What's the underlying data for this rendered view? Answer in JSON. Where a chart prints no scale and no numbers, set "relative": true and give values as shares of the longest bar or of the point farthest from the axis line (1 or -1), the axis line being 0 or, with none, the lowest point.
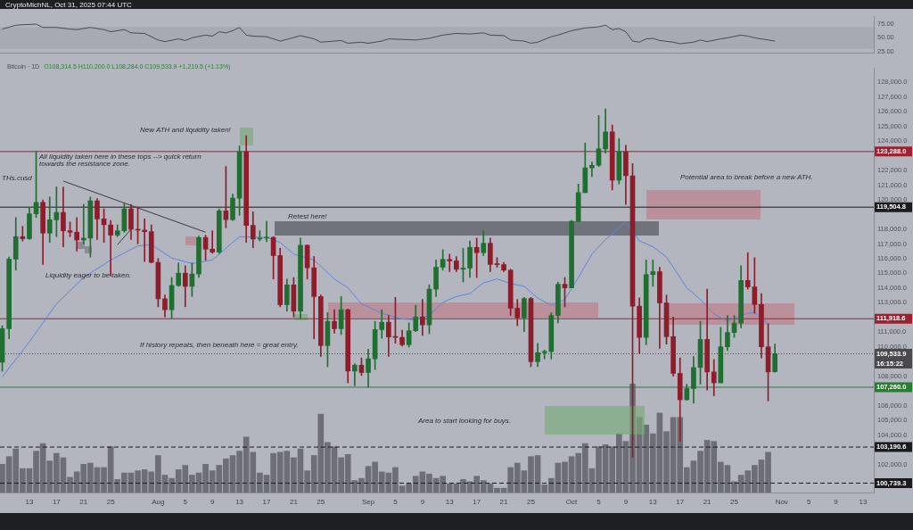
{
  "chart_data": [
    {
      "type": "line",
      "annotations": [
        "CryptoMichNL, Oct 31, 2025 07:44 UTC"
      ],
      "series": [
        {
          "color": "#4a4a50",
          "x": [
            "2025-07-09",
            "2025-07-11",
            "2025-07-12",
            "2025-07-14",
            "2025-07-15",
            "2025-07-17",
            "2025-07-19",
            "2025-07-20",
            "2025-07-22",
            "2025-07-24",
            "2025-07-25",
            "2025-07-27",
            "2025-07-28",
            "2025-07-30",
            "2025-08-01",
            "2025-08-02",
            "2025-08-04",
            "2025-08-05",
            "2025-08-06",
            "2025-08-08",
            "2025-08-09",
            "2025-08-10",
            "2025-08-11",
            "2025-08-12",
            "2025-08-13",
            "2025-08-14",
            "2025-08-15",
            "2025-08-17",
            "2025-08-19",
            "2025-08-20",
            "2025-08-22",
            "2025-08-24",
            "2025-08-25",
            "2025-08-28",
            "2025-08-29",
            "2025-08-31",
            "2025-09-01",
            "2025-09-03",
            "2025-09-04",
            "2025-09-06",
            "2025-09-08",
            "2025-09-10",
            "2025-09-12",
            "2025-09-14",
            "2025-09-16",
            "2025-09-18",
            "2025-09-19",
            "2025-09-21",
            "2025-09-22",
            "2025-09-24",
            "2025-09-25",
            "2025-09-26",
            "2025-09-28",
            "2025-09-29",
            "2025-10-01",
            "2025-10-03",
            "2025-10-05",
            "2025-10-06",
            "2025-10-07",
            "2025-10-08",
            "2025-10-09",
            "2025-10-10",
            "2025-10-11",
            "2025-10-12",
            "2025-10-13",
            "2025-10-14",
            "2025-10-16",
            "2025-10-17",
            "2025-10-19",
            "2025-10-20",
            "2025-10-21",
            "2025-10-23",
            "2025-10-24",
            "2025-10-26",
            "2025-10-27",
            "2025-10-28",
            "2025-10-30",
            "2025-10-31"
          ],
          "values": [
            66,
            73,
            74,
            75,
            69,
            69,
            66,
            65,
            69,
            65,
            61,
            65,
            59,
            58,
            46,
            43,
            48,
            45,
            50,
            55,
            53,
            61,
            59,
            63,
            69,
            55,
            53,
            52,
            44,
            47,
            54,
            48,
            42,
            45,
            40,
            42,
            40,
            44,
            48,
            47,
            46,
            49,
            55,
            58,
            57,
            59,
            55,
            54,
            46,
            44,
            40,
            42,
            52,
            55,
            63,
            68,
            70,
            73,
            65,
            67,
            61,
            44,
            42,
            48,
            49,
            45,
            42,
            39,
            42,
            46,
            43,
            48,
            50,
            55,
            53,
            50,
            46,
            44
          ]
        }
      ],
      "xlim": [
        "2025-07-08T16:00",
        "2025-11-14T14:00"
      ],
      "ylim": [
        22,
        89
      ],
      "yticks": [
        {
          "value": 75,
          "label": "75.00"
        },
        {
          "value": 50,
          "label": "50.00"
        },
        {
          "value": 25,
          "label": "25.00"
        }
      ],
      "bands": [
        {
          "axis": "y",
          "from": 30,
          "to": 70,
          "color": "#a7aab3"
        }
      ],
      "tick_labels": "y"
    },
    {
      "type": "candlestick",
      "title": "Bitcoin · 1D",
      "subtitle": "O108,314.5 H110,200.0 L108,284.0 C109,533.9 +1,219.5 (+1.13%)",
      "x": [
        "2025-07-09",
        "2025-07-10",
        "2025-07-11",
        "2025-07-12",
        "2025-07-13",
        "2025-07-14",
        "2025-07-15",
        "2025-07-16",
        "2025-07-17",
        "2025-07-18",
        "2025-07-19",
        "2025-07-20",
        "2025-07-21",
        "2025-07-22",
        "2025-07-23",
        "2025-07-24",
        "2025-07-25",
        "2025-07-26",
        "2025-07-27",
        "2025-07-28",
        "2025-07-29",
        "2025-07-30",
        "2025-07-31",
        "2025-08-01",
        "2025-08-02",
        "2025-08-03",
        "2025-08-04",
        "2025-08-05",
        "2025-08-06",
        "2025-08-07",
        "2025-08-08",
        "2025-08-09",
        "2025-08-10",
        "2025-08-11",
        "2025-08-12",
        "2025-08-13",
        "2025-08-14",
        "2025-08-15",
        "2025-08-16",
        "2025-08-17",
        "2025-08-18",
        "2025-08-19",
        "2025-08-20",
        "2025-08-21",
        "2025-08-22",
        "2025-08-23",
        "2025-08-24",
        "2025-08-25",
        "2025-08-26",
        "2025-08-27",
        "2025-08-28",
        "2025-08-29",
        "2025-08-30",
        "2025-08-31",
        "2025-09-01",
        "2025-09-02",
        "2025-09-03",
        "2025-09-04",
        "2025-09-05",
        "2025-09-06",
        "2025-09-07",
        "2025-09-08",
        "2025-09-09",
        "2025-09-10",
        "2025-09-11",
        "2025-09-12",
        "2025-09-13",
        "2025-09-14",
        "2025-09-15",
        "2025-09-16",
        "2025-09-17",
        "2025-09-18",
        "2025-09-19",
        "2025-09-20",
        "2025-09-21",
        "2025-09-22",
        "2025-09-23",
        "2025-09-24",
        "2025-09-25",
        "2025-09-26",
        "2025-09-27",
        "2025-09-28",
        "2025-09-29",
        "2025-09-30",
        "2025-10-01",
        "2025-10-02",
        "2025-10-03",
        "2025-10-04",
        "2025-10-05",
        "2025-10-06",
        "2025-10-07",
        "2025-10-08",
        "2025-10-09",
        "2025-10-10",
        "2025-10-11",
        "2025-10-12",
        "2025-10-13",
        "2025-10-14",
        "2025-10-15",
        "2025-10-16",
        "2025-10-17",
        "2025-10-18",
        "2025-10-19",
        "2025-10-20",
        "2025-10-21",
        "2025-10-22",
        "2025-10-23",
        "2025-10-24",
        "2025-10-25",
        "2025-10-26",
        "2025-10-27",
        "2025-10-28",
        "2025-10-29",
        "2025-10-30",
        "2025-10-31"
      ],
      "ohlc": [
        [
          108960,
          111440,
          108350,
          111240
        ],
        [
          111240,
          116110,
          110550,
          115970
        ],
        [
          115970,
          118800,
          115220,
          117500
        ],
        [
          117500,
          118200,
          117200,
          117360
        ],
        [
          117360,
          119490,
          117300,
          119050
        ],
        [
          119050,
          123290,
          118800,
          119830
        ],
        [
          119830,
          119990,
          115610,
          117740
        ],
        [
          117740,
          120190,
          117110,
          118640
        ],
        [
          118640,
          120880,
          117500,
          119150
        ],
        [
          119150,
          120880,
          116810,
          117900
        ],
        [
          117900,
          118500,
          117500,
          117800
        ],
        [
          117800,
          118800,
          116510,
          117270
        ],
        [
          117270,
          119690,
          117010,
          117400
        ],
        [
          117400,
          120190,
          116110,
          119930
        ],
        [
          119930,
          120090,
          117300,
          118700
        ],
        [
          118700,
          119390,
          117110,
          118300
        ],
        [
          118300,
          118600,
          114820,
          117600
        ],
        [
          117600,
          118300,
          117500,
          117900
        ],
        [
          117900,
          119730,
          117800,
          119390
        ],
        [
          119390,
          119690,
          117300,
          118000
        ],
        [
          118000,
          119490,
          117010,
          117940
        ],
        [
          117940,
          118700,
          115810,
          117840
        ],
        [
          117840,
          118300,
          115710,
          115750
        ],
        [
          115750,
          116010,
          112730,
          113270
        ],
        [
          113270,
          113530,
          112040,
          112530
        ],
        [
          112530,
          114720,
          111940,
          114180
        ],
        [
          114180,
          115710,
          114120,
          115020
        ],
        [
          115020,
          115520,
          112730,
          114120
        ],
        [
          114120,
          115710,
          113430,
          114960
        ],
        [
          114960,
          117540,
          114720,
          117440
        ],
        [
          117440,
          117600,
          115910,
          116650
        ],
        [
          116650,
          117900,
          116370,
          116450
        ],
        [
          116450,
          119390,
          116350,
          119250
        ],
        [
          119250,
          122270,
          118100,
          118660
        ],
        [
          118660,
          120390,
          118600,
          120110
        ],
        [
          120110,
          123670,
          118940,
          123270
        ],
        [
          123270,
          124360,
          117110,
          118260
        ],
        [
          118260,
          119190,
          116750,
          117340
        ],
        [
          117340,
          117900,
          117210,
          117400
        ],
        [
          117400,
          118540,
          117150,
          117450
        ],
        [
          117450,
          117500,
          114620,
          116210
        ],
        [
          116210,
          116710,
          112730,
          112870
        ],
        [
          112870,
          114620,
          112430,
          114220
        ],
        [
          114220,
          114720,
          112040,
          112430
        ],
        [
          112430,
          117400,
          111940,
          116910
        ],
        [
          116910,
          116950,
          114620,
          115380
        ],
        [
          115380,
          116150,
          110550,
          113430
        ],
        [
          113430,
          113530,
          109350,
          110090
        ],
        [
          110090,
          112330,
          108660,
          111740
        ],
        [
          111740,
          112530,
          110940,
          111240
        ],
        [
          111240,
          113430,
          110840,
          112530
        ],
        [
          112530,
          112570,
          107560,
          108360
        ],
        [
          108360,
          108860,
          107360,
          108760
        ],
        [
          108760,
          109250,
          108060,
          108260
        ],
        [
          108260,
          109850,
          107260,
          109190
        ],
        [
          109190,
          111740,
          108460,
          111180
        ],
        [
          111180,
          112530,
          110590,
          111680
        ],
        [
          111680,
          112140,
          109350,
          110680
        ],
        [
          110680,
          113370,
          110250,
          110650
        ],
        [
          110650,
          111140,
          110050,
          110150
        ],
        [
          110150,
          111640,
          109990,
          111100
        ],
        [
          111100,
          112830,
          111040,
          112040
        ],
        [
          112040,
          113230,
          110780,
          111500
        ],
        [
          111500,
          114220,
          110900,
          113930
        ],
        [
          113930,
          115910,
          113430,
          115420
        ],
        [
          115420,
          116610,
          115220,
          115950
        ],
        [
          115950,
          116310,
          115120,
          115850
        ],
        [
          115850,
          116150,
          115120,
          115280
        ],
        [
          115280,
          116710,
          114420,
          115360
        ],
        [
          115360,
          117210,
          114720,
          116770
        ],
        [
          116770,
          117400,
          114720,
          116410
        ],
        [
          116410,
          117900,
          116210,
          117050
        ],
        [
          117050,
          117400,
          115120,
          115610
        ],
        [
          115610,
          116070,
          115420,
          115600
        ],
        [
          115600,
          115750,
          115120,
          115220
        ],
        [
          115220,
          115280,
          112140,
          112630
        ],
        [
          112630,
          113230,
          111440,
          111980
        ],
        [
          111980,
          113370,
          111040,
          113290
        ],
        [
          113290,
          113370,
          108660,
          109000
        ],
        [
          109000,
          110250,
          108660,
          109610
        ],
        [
          109610,
          109790,
          109190,
          109690
        ],
        [
          109690,
          112330,
          109190,
          112140
        ],
        [
          112140,
          114420,
          111640,
          114260
        ],
        [
          114260,
          114720,
          112730,
          114020
        ],
        [
          114020,
          118600,
          114020,
          118540
        ],
        [
          118540,
          121080,
          118540,
          120490
        ],
        [
          120490,
          123870,
          120490,
          122180
        ],
        [
          122180,
          122570,
          121580,
          122350
        ],
        [
          122350,
          125750,
          122270,
          123470
        ],
        [
          123470,
          126190,
          123170,
          124620
        ],
        [
          124620,
          125100,
          120680,
          121340
        ],
        [
          121340,
          124160,
          121080,
          123270
        ],
        [
          123270,
          123710,
          119690,
          121640
        ],
        [
          121640,
          122470,
          102490,
          112770
        ],
        [
          112770,
          113330,
          109550,
          110650
        ],
        [
          110650,
          115910,
          110150,
          114920
        ],
        [
          114920,
          115910,
          114120,
          115120
        ],
        [
          115120,
          115420,
          109910,
          112990
        ],
        [
          112990,
          113530,
          110190,
          110700
        ],
        [
          110700,
          112040,
          108000,
          108200
        ],
        [
          108200,
          109250,
          103590,
          106410
        ],
        [
          106410,
          107460,
          106370,
          107170
        ],
        [
          107170,
          109350,
          106170,
          108600
        ],
        [
          108600,
          111740,
          107460,
          110510
        ],
        [
          110510,
          113930,
          107070,
          108300
        ],
        [
          108300,
          109150,
          106670,
          107560
        ],
        [
          107560,
          111340,
          107560,
          110010
        ],
        [
          110010,
          112140,
          109750,
          110980
        ],
        [
          110980,
          112140,
          110650,
          111620
        ],
        [
          111620,
          115520,
          111300,
          114520
        ],
        [
          114520,
          116410,
          113930,
          114080
        ],
        [
          114080,
          116070,
          112290,
          112890
        ],
        [
          112890,
          113630,
          109250,
          110010
        ],
        [
          110010,
          111580,
          106330,
          108300
        ],
        [
          108314.5,
          110200,
          108284,
          109533.9
        ]
      ],
      "colors": [
        "#1f6f30",
        "#1f6f30",
        "#1f6f30",
        "#8e1c2b",
        "#1f6f30",
        "#1f6f30",
        "#8e1c2b",
        "#1f6f30",
        "#1f6f30",
        "#8e1c2b",
        "#8e1c2b",
        "#8e1c2b",
        "#1f6f30",
        "#1f6f30",
        "#8e1c2b",
        "#8e1c2b",
        "#8e1c2b",
        "#1f6f30",
        "#1f6f30",
        "#8e1c2b",
        "#8e1c2b",
        "#8e1c2b",
        "#8e1c2b",
        "#8e1c2b",
        "#8e1c2b",
        "#1f6f30",
        "#1f6f30",
        "#8e1c2b",
        "#1f6f30",
        "#1f6f30",
        "#8e1c2b",
        "#8e1c2b",
        "#1f6f30",
        "#8e1c2b",
        "#1f6f30",
        "#1f6f30",
        "#8e1c2b",
        "#8e1c2b",
        "#1f6f30",
        "#1f6f30",
        "#8e1c2b",
        "#8e1c2b",
        "#1f6f30",
        "#8e1c2b",
        "#1f6f30",
        "#8e1c2b",
        "#8e1c2b",
        "#8e1c2b",
        "#1f6f30",
        "#8e1c2b",
        "#1f6f30",
        "#8e1c2b",
        "#1f6f30",
        "#8e1c2b",
        "#1f6f30",
        "#1f6f30",
        "#1f6f30",
        "#8e1c2b",
        "#8e1c2b",
        "#8e1c2b",
        "#1f6f30",
        "#1f6f30",
        "#8e1c2b",
        "#1f6f30",
        "#1f6f30",
        "#1f6f30",
        "#8e1c2b",
        "#8e1c2b",
        "#1f6f30",
        "#1f6f30",
        "#8e1c2b",
        "#1f6f30",
        "#8e1c2b",
        "#8e1c2b",
        "#8e1c2b",
        "#8e1c2b",
        "#8e1c2b",
        "#1f6f30",
        "#8e1c2b",
        "#1f6f30",
        "#1f6f30",
        "#1f6f30",
        "#1f6f30",
        "#8e1c2b",
        "#1f6f30",
        "#1f6f30",
        "#1f6f30",
        "#1f6f30",
        "#1f6f30",
        "#1f6f30",
        "#8e1c2b",
        "#1f6f30",
        "#8e1c2b",
        "#8e1c2b",
        "#8e1c2b",
        "#1f6f30",
        "#1f6f30",
        "#8e1c2b",
        "#8e1c2b",
        "#8e1c2b",
        "#8e1c2b",
        "#1f6f30",
        "#1f6f30",
        "#1f6f30",
        "#8e1c2b",
        "#8e1c2b",
        "#1f6f30",
        "#1f6f30",
        "#1f6f30",
        "#1f6f30",
        "#8e1c2b",
        "#8e1c2b",
        "#8e1c2b",
        "#8e1c2b",
        "#1f6f30"
      ],
      "series": [
        {
          "type": "line",
          "color": "#5b86e0",
          "x": [
            "2025-07-09",
            "2025-07-13",
            "2025-07-17",
            "2025-07-21",
            "2025-07-25",
            "2025-07-29",
            "2025-07-31",
            "2025-08-03",
            "2025-08-06",
            "2025-08-09",
            "2025-08-12",
            "2025-08-13",
            "2025-08-17",
            "2025-08-19",
            "2025-08-21",
            "2025-08-24",
            "2025-08-27",
            "2025-08-29",
            "2025-08-31",
            "2025-09-03",
            "2025-09-06",
            "2025-09-08",
            "2025-09-10",
            "2025-09-12",
            "2025-09-14",
            "2025-09-16",
            "2025-09-18",
            "2025-09-20",
            "2025-09-22",
            "2025-09-24",
            "2025-09-26",
            "2025-09-28",
            "2025-09-30",
            "2025-10-02",
            "2025-10-04",
            "2025-10-06",
            "2025-10-09",
            "2025-10-11",
            "2025-10-13",
            "2025-10-15",
            "2025-10-17",
            "2025-10-18",
            "2025-10-20",
            "2025-10-22",
            "2025-10-24",
            "2025-10-26",
            "2025-10-27",
            "2025-10-28",
            "2025-10-29",
            "2025-10-30"
          ],
          "values": [
            107960,
            110350,
            112930,
            114720,
            115910,
            116870,
            116950,
            116050,
            115670,
            115910,
            117110,
            117500,
            117440,
            117110,
            116310,
            115910,
            114620,
            114020,
            112930,
            112290,
            111900,
            111840,
            112140,
            113030,
            113430,
            113630,
            114360,
            114620,
            114320,
            114120,
            113330,
            112830,
            113230,
            114720,
            116310,
            117300,
            118500,
            117210,
            116810,
            116110,
            114720,
            114020,
            113230,
            112240,
            111740,
            112140,
            112290,
            112330,
            111940,
            111540
          ]
        },
        {
          "type": "line",
          "color": "#3a3a40",
          "x": [
            "2025-07-18",
            "2025-08-08"
          ],
          "values": [
            121280,
            117800
          ]
        },
        {
          "type": "line",
          "color": "#3a3a40",
          "x": [
            "2025-07-26",
            "2025-07-28"
          ],
          "values": [
            116950,
            118000
          ]
        }
      ],
      "xlim": [
        "2025-07-08T16:00",
        "2025-11-14T14:00"
      ],
      "xticks": [
        {
          "value": "2025-07-13",
          "label": "13"
        },
        {
          "value": "2025-07-17",
          "label": "17"
        },
        {
          "value": "2025-07-21",
          "label": "21"
        },
        {
          "value": "2025-07-25",
          "label": "25"
        },
        {
          "value": "2025-08-01",
          "label": "Aug"
        },
        {
          "value": "2025-08-05",
          "label": "5"
        },
        {
          "value": "2025-08-09",
          "label": "9"
        },
        {
          "value": "2025-08-13",
          "label": "13"
        },
        {
          "value": "2025-08-17",
          "label": "17"
        },
        {
          "value": "2025-08-21",
          "label": "21"
        },
        {
          "value": "2025-08-25",
          "label": "25"
        },
        {
          "value": "2025-09-01",
          "label": "Sep"
        },
        {
          "value": "2025-09-05",
          "label": "5"
        },
        {
          "value": "2025-09-09",
          "label": "9"
        },
        {
          "value": "2025-09-13",
          "label": "13"
        },
        {
          "value": "2025-09-17",
          "label": "17"
        },
        {
          "value": "2025-09-21",
          "label": "21"
        },
        {
          "value": "2025-09-25",
          "label": "25"
        },
        {
          "value": "2025-10-01",
          "label": "Oct"
        },
        {
          "value": "2025-10-05",
          "label": "5"
        },
        {
          "value": "2025-10-09",
          "label": "9"
        },
        {
          "value": "2025-10-13",
          "label": "13"
        },
        {
          "value": "2025-10-17",
          "label": "17"
        },
        {
          "value": "2025-10-21",
          "label": "21"
        },
        {
          "value": "2025-10-25",
          "label": "25"
        },
        {
          "value": "2025-11-01",
          "label": "Nov"
        },
        {
          "value": "2025-11-05",
          "label": "5"
        },
        {
          "value": "2025-11-09",
          "label": "9"
        },
        {
          "value": "2025-11-13",
          "label": "13"
        }
      ],
      "ylim": [
        100100,
        128950
      ],
      "yticks": [
        {
          "value": 128000,
          "label": "128,000.0"
        },
        {
          "value": 127000,
          "label": "127,000.0"
        },
        {
          "value": 126000,
          "label": "126,000.0"
        },
        {
          "value": 125000,
          "label": "125,000.0"
        },
        {
          "value": 124000,
          "label": "124,000.0"
        },
        {
          "value": 122000,
          "label": "122,000.0"
        },
        {
          "value": 121000,
          "label": "121,000.0"
        },
        {
          "value": 120000,
          "label": "120,000.0"
        },
        {
          "value": 118000,
          "label": "118,000.0"
        },
        {
          "value": 117000,
          "label": "117,000.0"
        },
        {
          "value": 116000,
          "label": "116,000.0"
        },
        {
          "value": 115000,
          "label": "115,000.0"
        },
        {
          "value": 114000,
          "label": "114,000.0"
        },
        {
          "value": 113000,
          "label": "113,000.0"
        },
        {
          "value": 111000,
          "label": "111,000.0"
        },
        {
          "value": 110000,
          "label": "110,000.0"
        },
        {
          "value": 108000,
          "label": "108,000.0"
        },
        {
          "value": 106000,
          "label": "106,000.0"
        },
        {
          "value": 105000,
          "label": "105,000.0"
        },
        {
          "value": 104000,
          "label": "104,000.0"
        },
        {
          "value": 102000,
          "label": "102,000.0"
        }
      ],
      "ref_lines": [
        {
          "axis": "y",
          "value": 123288,
          "label": "123,288.0",
          "color": "#9b2230"
        },
        {
          "axis": "y",
          "value": 119504.8,
          "label": "119,504.8",
          "color": "#1b1b1e"
        },
        {
          "axis": "y",
          "value": 111918.6,
          "label": "111,918.6",
          "color": "#9b2230"
        },
        {
          "axis": "y",
          "value": 109533.9,
          "label": "109,533.9\n16:15:22",
          "color": "#4a4a4e",
          "line_style": "dotted"
        },
        {
          "axis": "y",
          "value": 107260,
          "label": "107,260.0",
          "color": "#2b7a36"
        },
        {
          "axis": "y",
          "value": 103190.6,
          "label": "103,190.6",
          "color": "#1b1b1e",
          "line_style": "dashed"
        },
        {
          "axis": "y",
          "value": 100739.3,
          "label": "100,739.3",
          "color": "#1b1b1e",
          "line_style": "dashed"
        }
      ],
      "annotations": [
        "New ATH and liquidity taken!",
        "All liquidity taken here in these tops --> quick return towards the resistance zone.",
        "THs.cusd",
        "Liquidity eager to be taken.",
        "Retest here!",
        "If history repeats, then beneath here = great entry.",
        "Area to start looking for buys.",
        "Potential area to break before a new ATH."
      ]
    },
    {
      "type": "bar",
      "relative": true,
      "tick_labels": false,
      "color": "#6d6e76",
      "xlim": [
        "2025-07-08T16:00",
        "2025-11-14T14:00"
      ],
      "x": [
        "2025-07-09",
        "2025-07-10",
        "2025-07-11",
        "2025-07-12",
        "2025-07-13",
        "2025-07-14",
        "2025-07-15",
        "2025-07-16",
        "2025-07-17",
        "2025-07-18",
        "2025-07-19",
        "2025-07-20",
        "2025-07-21",
        "2025-07-22",
        "2025-07-23",
        "2025-07-24",
        "2025-07-25",
        "2025-07-26",
        "2025-07-27",
        "2025-07-28",
        "2025-07-29",
        "2025-07-30",
        "2025-07-31",
        "2025-08-01",
        "2025-08-02",
        "2025-08-03",
        "2025-08-04",
        "2025-08-05",
        "2025-08-06",
        "2025-08-07",
        "2025-08-08",
        "2025-08-09",
        "2025-08-10",
        "2025-08-11",
        "2025-08-12",
        "2025-08-13",
        "2025-08-14",
        "2025-08-15",
        "2025-08-16",
        "2025-08-17",
        "2025-08-18",
        "2025-08-19",
        "2025-08-20",
        "2025-08-21",
        "2025-08-22",
        "2025-08-23",
        "2025-08-24",
        "2025-08-25",
        "2025-08-26",
        "2025-08-27",
        "2025-08-28",
        "2025-08-29",
        "2025-08-30",
        "2025-08-31",
        "2025-09-01",
        "2025-09-02",
        "2025-09-03",
        "2025-09-04",
        "2025-09-05",
        "2025-09-06",
        "2025-09-07",
        "2025-09-08",
        "2025-09-09",
        "2025-09-10",
        "2025-09-11",
        "2025-09-12",
        "2025-09-13",
        "2025-09-14",
        "2025-09-15",
        "2025-09-16",
        "2025-09-17",
        "2025-09-18",
        "2025-09-19",
        "2025-09-20",
        "2025-09-21",
        "2025-09-22",
        "2025-09-23",
        "2025-09-24",
        "2025-09-25",
        "2025-09-26",
        "2025-09-27",
        "2025-09-28",
        "2025-09-29",
        "2025-09-30",
        "2025-10-01",
        "2025-10-02",
        "2025-10-03",
        "2025-10-04",
        "2025-10-05",
        "2025-10-06",
        "2025-10-07",
        "2025-10-08",
        "2025-10-09",
        "2025-10-10",
        "2025-10-11",
        "2025-10-12",
        "2025-10-13",
        "2025-10-14",
        "2025-10-15",
        "2025-10-16",
        "2025-10-17",
        "2025-10-18",
        "2025-10-19",
        "2025-10-20",
        "2025-10-21",
        "2025-10-22",
        "2025-10-23",
        "2025-10-24",
        "2025-10-25",
        "2025-10-26",
        "2025-10-27",
        "2025-10-28",
        "2025-10-29",
        "2025-10-30"
      ],
      "values": [
        0.26,
        0.33,
        0.4,
        0.22,
        0.22,
        0.38,
        0.45,
        0.29,
        0.36,
        0.32,
        0.14,
        0.19,
        0.26,
        0.27,
        0.23,
        0.23,
        0.42,
        0.12,
        0.18,
        0.18,
        0.2,
        0.21,
        0.19,
        0.34,
        0.16,
        0.13,
        0.21,
        0.25,
        0.16,
        0.18,
        0.26,
        0.2,
        0.25,
        0.31,
        0.34,
        0.38,
        0.51,
        0.37,
        0.18,
        0.16,
        0.36,
        0.37,
        0.38,
        0.32,
        0.4,
        0.2,
        0.34,
        0.72,
        0.46,
        0.42,
        0.32,
        0.35,
        0.11,
        0.13,
        0.24,
        0.28,
        0.19,
        0.18,
        0.23,
        0.06,
        0.08,
        0.15,
        0.19,
        0.17,
        0.13,
        0.15,
        0.08,
        0.08,
        0.12,
        0.1,
        0.15,
        0.11,
        0.08,
        0.04,
        0.04,
        0.23,
        0.27,
        0.2,
        0.33,
        0.34,
        0.07,
        0.13,
        0.27,
        0.28,
        0.33,
        0.36,
        0.45,
        0.22,
        0.42,
        0.44,
        0.42,
        0.54,
        0.47,
        1,
        0.69,
        0.62,
        0.54,
        0.73,
        0.56,
        0.69,
        0.69,
        0.23,
        0.29,
        0.38,
        0.48,
        0.47,
        0.28,
        0.25,
        0.1,
        0.16,
        0.2,
        0.25,
        0.3,
        0.37
      ]
    }
  ]
}
